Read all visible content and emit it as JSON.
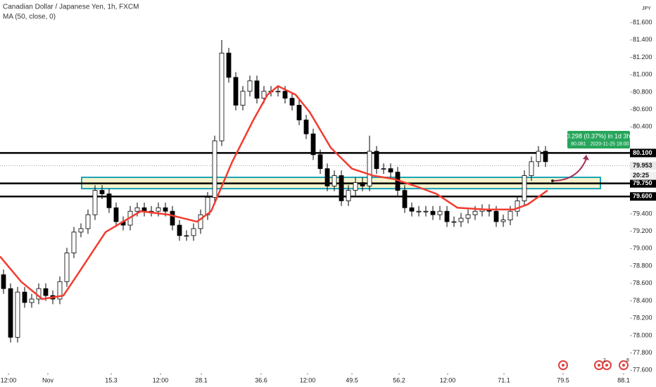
{
  "chart_data": {
    "type": "candlestick",
    "title": "Canadian Dollar / Japanese Yen, 1h, FXCM",
    "subtitle": "MA (50, close, 0)",
    "currency": "JPY",
    "up_color": "#ffffff",
    "down_color": "#000000",
    "x": [
      0,
      1,
      2,
      3,
      4,
      5,
      6,
      7,
      8,
      9,
      10,
      11,
      12,
      13,
      14,
      15,
      16,
      17,
      18,
      19,
      20,
      21,
      22,
      23,
      24,
      25,
      26,
      27,
      28,
      29,
      30,
      31,
      32,
      33,
      34,
      35,
      36,
      37,
      38,
      39,
      40,
      41,
      42,
      43,
      44,
      45,
      46,
      47,
      48,
      49,
      50,
      51,
      52,
      53,
      54,
      55,
      56,
      57,
      58,
      59,
      60,
      61,
      62,
      63,
      64,
      65,
      66,
      67,
      68,
      69,
      70,
      71,
      72,
      73,
      74,
      75,
      76,
      77
    ],
    "open": [
      78.7,
      78.54,
      77.98,
      78.5,
      78.38,
      78.42,
      78.54,
      78.46,
      78.42,
      78.62,
      78.95,
      79.19,
      79.23,
      79.39,
      79.67,
      79.63,
      79.47,
      79.31,
      79.27,
      79.43,
      79.47,
      79.43,
      79.43,
      79.47,
      79.43,
      79.27,
      79.15,
      79.15,
      79.23,
      79.39,
      79.59,
      80.24,
      81.25,
      80.97,
      80.65,
      80.81,
      80.93,
      80.73,
      80.81,
      80.81,
      80.81,
      80.73,
      80.65,
      80.48,
      80.32,
      80.08,
      79.92,
      79.72,
      79.84,
      79.55,
      79.67,
      79.76,
      79.72,
      80.12,
      79.92,
      79.92,
      79.88,
      79.67,
      79.47,
      79.43,
      79.43,
      79.43,
      79.39,
      79.43,
      79.31,
      79.31,
      79.35,
      79.39,
      79.43,
      79.45,
      79.43,
      79.31,
      79.33,
      79.43,
      79.55,
      79.84,
      80.0,
      80.12
    ],
    "high": [
      78.76,
      78.6,
      78.56,
      78.56,
      78.48,
      78.6,
      78.6,
      78.52,
      78.68,
      79.01,
      79.25,
      79.29,
      79.45,
      79.73,
      79.73,
      79.69,
      79.53,
      79.37,
      79.49,
      79.53,
      79.53,
      79.49,
      79.53,
      79.53,
      79.49,
      79.33,
      79.21,
      79.29,
      79.45,
      79.65,
      80.3,
      81.4,
      81.31,
      81.03,
      80.87,
      80.99,
      80.99,
      80.87,
      80.87,
      80.87,
      80.87,
      80.79,
      80.71,
      80.54,
      80.38,
      80.14,
      79.98,
      79.9,
      79.9,
      79.73,
      79.82,
      79.82,
      80.3,
      80.18,
      79.98,
      79.98,
      79.94,
      79.73,
      79.53,
      79.49,
      79.49,
      79.49,
      79.49,
      79.49,
      79.37,
      79.41,
      79.45,
      79.49,
      79.51,
      79.51,
      79.49,
      79.39,
      79.49,
      79.61,
      79.9,
      80.06,
      80.18,
      80.18
    ],
    "low": [
      78.48,
      77.92,
      77.92,
      78.32,
      78.32,
      78.36,
      78.4,
      78.36,
      78.36,
      78.56,
      78.89,
      79.13,
      79.17,
      79.33,
      79.57,
      79.41,
      79.25,
      79.21,
      79.21,
      79.37,
      79.37,
      79.37,
      79.37,
      79.37,
      79.21,
      79.09,
      79.09,
      79.09,
      79.17,
      79.33,
      79.53,
      80.18,
      80.91,
      80.59,
      80.59,
      80.75,
      80.67,
      80.67,
      80.75,
      80.75,
      80.67,
      80.59,
      80.42,
      80.26,
      80.02,
      79.86,
      79.66,
      79.66,
      79.49,
      79.49,
      79.61,
      79.66,
      79.66,
      79.86,
      79.86,
      79.82,
      79.61,
      79.41,
      79.37,
      79.37,
      79.37,
      79.33,
      79.33,
      79.25,
      79.25,
      79.25,
      79.29,
      79.33,
      79.37,
      79.37,
      79.25,
      79.25,
      79.27,
      79.37,
      79.49,
      79.78,
      79.94,
      79.94
    ],
    "close": [
      78.54,
      77.98,
      78.5,
      78.38,
      78.42,
      78.54,
      78.46,
      78.42,
      78.62,
      78.95,
      79.19,
      79.23,
      79.39,
      79.67,
      79.63,
      79.47,
      79.31,
      79.27,
      79.43,
      79.47,
      79.43,
      79.43,
      79.47,
      79.43,
      79.27,
      79.15,
      79.15,
      79.23,
      79.39,
      79.59,
      80.24,
      81.25,
      80.97,
      80.65,
      80.81,
      80.93,
      80.73,
      80.81,
      80.81,
      80.81,
      80.73,
      80.65,
      80.48,
      80.32,
      80.08,
      79.92,
      79.72,
      79.84,
      79.55,
      79.67,
      79.76,
      79.72,
      80.12,
      79.92,
      79.92,
      79.88,
      79.67,
      79.47,
      79.43,
      79.43,
      79.43,
      79.39,
      79.43,
      79.31,
      79.31,
      79.35,
      79.39,
      79.43,
      79.45,
      79.43,
      79.31,
      79.33,
      79.43,
      79.55,
      79.84,
      80.0,
      80.12,
      80.0
    ],
    "ma": {
      "color": "#f23b2f",
      "x": [
        -0.5,
        2.5,
        5.5,
        8.5,
        10.5,
        14.5,
        19.5,
        23.5,
        27.5,
        29.5,
        32.5,
        35.5,
        37.5,
        39,
        41.5,
        43.5,
        46.5,
        49.5,
        52.5,
        55.5,
        58.5,
        61.5,
        64.5,
        68.5,
        72.5,
        74.5,
        77.3
      ],
      "values": [
        78.91,
        78.62,
        78.42,
        78.46,
        78.7,
        79.19,
        79.43,
        79.39,
        79.31,
        79.43,
        80.0,
        80.48,
        80.77,
        80.87,
        80.77,
        80.57,
        80.16,
        79.92,
        79.84,
        79.8,
        79.72,
        79.63,
        79.47,
        79.45,
        79.45,
        79.51,
        79.67
      ]
    },
    "levels": [
      {
        "value": 80.1,
        "label": "80.100"
      },
      {
        "value": 79.75,
        "label": "79.750"
      },
      {
        "value": 79.6,
        "label": "79.600"
      }
    ],
    "zone": [
      79.69,
      79.82
    ],
    "current_price": {
      "value": 79.953,
      "label": "79.953"
    },
    "countdown": "20:25",
    "projection": {
      "from": 79.78,
      "to": 80.08,
      "change": "0.298 (0.37%) in 1d 3h",
      "price": "80.081",
      "time": "2020-11-25  18:00"
    },
    "event_counts": [
      2,
      8
    ],
    "xlim": [
      -0.5,
      89
    ],
    "ylim": [
      77.57,
      81.86
    ],
    "xticks": [
      {
        "value": 0.7,
        "label": "12:00"
      },
      {
        "value": 6.3,
        "label": "Nov"
      },
      15.3,
      {
        "value": 22.3,
        "label": "12:00"
      },
      28.1,
      36.6,
      {
        "value": 43.2,
        "label": "12:00"
      },
      49.5,
      56.2,
      {
        "value": 63.1,
        "label": "12:00"
      },
      71.1,
      79.5,
      88.1
    ],
    "xtick_labels_override": null,
    "yticks": [
      {
        "value": 77.6,
        "label": "77.600"
      },
      {
        "value": 77.8,
        "label": "77.800"
      },
      {
        "value": 78,
        "label": "78.000"
      },
      {
        "value": 78.2,
        "label": "78.200"
      },
      {
        "value": 78.4,
        "label": "78.400"
      },
      {
        "value": 78.6,
        "label": "78.600"
      },
      {
        "value": 78.8,
        "label": "78.800"
      },
      {
        "value": 79,
        "label": "79.000"
      },
      {
        "value": 79.2,
        "label": "79.200"
      },
      {
        "value": 79.4,
        "label": "79.400"
      },
      {
        "value": 80.4,
        "label": "80.400"
      },
      {
        "value": 80.6,
        "label": "80.600"
      },
      {
        "value": 80.8,
        "label": "80.800"
      },
      {
        "value": 81,
        "label": "81.000"
      },
      {
        "value": 81.2,
        "label": "81.200"
      },
      {
        "value": 81.4,
        "label": "81.400"
      },
      {
        "value": 81.6,
        "label": "81.600"
      }
    ],
    "grid": false
  }
}
